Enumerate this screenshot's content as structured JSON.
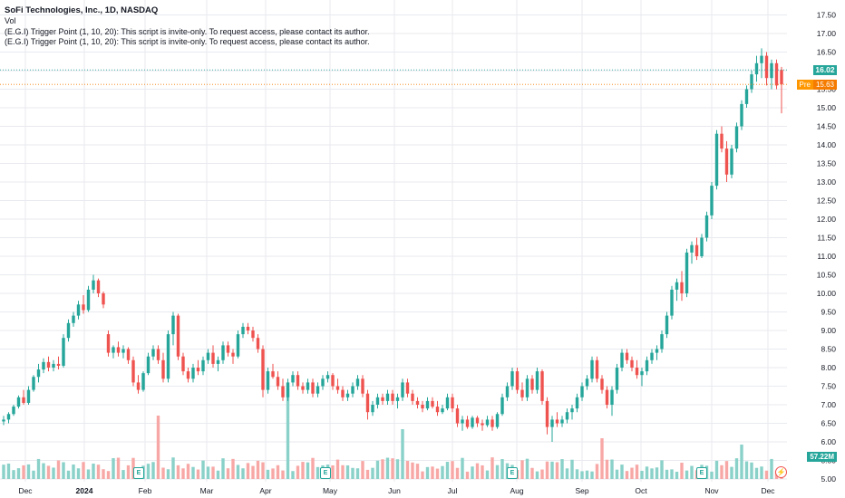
{
  "header": {
    "title": "SoFi Technologies, Inc., 1D, NASDAQ",
    "line2": "Vol",
    "line3": "(E.G.I) Trigger Point  (1, 10, 20): This script is invite-only. To request access, please contact its author.",
    "line4": "(E.G.I) Trigger Point  (1, 10, 20): This script is invite-only. To request access, please contact its author."
  },
  "tags": {
    "last_price": "16.02",
    "pre_label": "Pre",
    "pre_price": "15.63",
    "volume": "57.22M",
    "earnings_icon": "E",
    "dividend_icon": "⚡"
  },
  "colors": {
    "up": "#26a69a",
    "down": "#ef5350",
    "up_vol": "#8ad1c9",
    "down_vol": "#f7a8a6",
    "pre": "#f57c00",
    "grid": "#e8eaef"
  },
  "chart_data": {
    "type": "candlestick",
    "title": "SoFi Technologies, Inc., 1D, NASDAQ",
    "y_ticks": [
      "17.50",
      "17.00",
      "16.50",
      "16.00",
      "15.50",
      "15.00",
      "14.50",
      "14.00",
      "13.50",
      "13.00",
      "12.50",
      "12.00",
      "11.50",
      "11.00",
      "10.50",
      "10.00",
      "9.50",
      "9.00",
      "8.50",
      "8.00",
      "7.50",
      "7.00",
      "6.50",
      "6.00",
      "5.50",
      "5.00"
    ],
    "ylim": [
      5.0,
      17.5
    ],
    "x_labels": [
      "Dec",
      "2024",
      "Feb",
      "Mar",
      "Apr",
      "May",
      "Jun",
      "Jul",
      "Aug",
      "Sep",
      "Oct",
      "Nov",
      "Dec"
    ],
    "last_price": 16.02,
    "pre_market_price": 15.63,
    "last_volume": "57.22M",
    "series": [
      {
        "name": "Dec-23",
        "values": [
          [
            6.55,
            6.7,
            6.45,
            6.6
          ],
          [
            6.6,
            6.8,
            6.5,
            6.75
          ],
          [
            6.75,
            7.0,
            6.7,
            6.95
          ],
          [
            6.95,
            7.25,
            6.9,
            7.2
          ],
          [
            7.2,
            7.4,
            7.0,
            7.05
          ],
          [
            7.05,
            7.5,
            7.0,
            7.4
          ],
          [
            7.4,
            7.8,
            7.35,
            7.75
          ],
          [
            7.75,
            8.1,
            7.6,
            7.95
          ],
          [
            7.95,
            8.25,
            7.85,
            8.15
          ],
          [
            8.15,
            8.3,
            7.9,
            8.0
          ],
          [
            8.0,
            8.2,
            7.9,
            8.1
          ],
          [
            8.1,
            8.3,
            7.95,
            8.05
          ],
          [
            8.05,
            8.9,
            8.0,
            8.8
          ],
          [
            8.8,
            9.3,
            8.7,
            9.2
          ],
          [
            9.2,
            9.5,
            9.1,
            9.4
          ],
          [
            9.4,
            9.8,
            9.3,
            9.7
          ],
          [
            9.7,
            9.95,
            9.45,
            9.55
          ],
          [
            9.55,
            10.2,
            9.5,
            10.1
          ],
          [
            10.1,
            10.5,
            10.0,
            10.35
          ],
          [
            10.35,
            10.4,
            9.9,
            10.0
          ],
          [
            10.0,
            10.05,
            9.6,
            9.7
          ]
        ]
      },
      {
        "name": "Jan-24",
        "values": [
          [
            8.9,
            9.0,
            8.3,
            8.4
          ],
          [
            8.4,
            8.6,
            8.25,
            8.55
          ],
          [
            8.55,
            8.7,
            8.3,
            8.4
          ],
          [
            8.4,
            8.6,
            8.25,
            8.5
          ],
          [
            8.5,
            8.55,
            8.1,
            8.2
          ],
          [
            8.2,
            8.3,
            7.5,
            7.6
          ],
          [
            7.6,
            7.8,
            7.3,
            7.4
          ],
          [
            7.4,
            7.9,
            7.35,
            7.85
          ],
          [
            7.85,
            8.4,
            7.8,
            8.3
          ],
          [
            8.3,
            8.6,
            8.2,
            8.5
          ],
          [
            8.5,
            8.6,
            8.1,
            8.2
          ],
          [
            8.2,
            8.4,
            7.6,
            7.7
          ],
          [
            7.7,
            9.0,
            7.6,
            8.9
          ],
          [
            8.9,
            9.5,
            8.6,
            9.4
          ],
          [
            9.4,
            9.45,
            8.2,
            8.3
          ],
          [
            8.3,
            8.4,
            7.8,
            7.9
          ],
          [
            7.9,
            8.0,
            7.6,
            7.7
          ],
          [
            7.7,
            8.1,
            7.6,
            8.0
          ],
          [
            8.0,
            8.2,
            7.8,
            7.9
          ],
          [
            7.9,
            8.3,
            7.8,
            8.2
          ]
        ]
      },
      {
        "name": "Feb-24",
        "values": [
          [
            8.2,
            8.5,
            8.1,
            8.4
          ],
          [
            8.4,
            8.6,
            8.0,
            8.1
          ],
          [
            8.1,
            8.3,
            7.9,
            8.2
          ],
          [
            8.2,
            8.7,
            8.1,
            8.6
          ],
          [
            8.6,
            8.7,
            8.3,
            8.4
          ],
          [
            8.4,
            8.5,
            8.1,
            8.3
          ],
          [
            8.3,
            9.0,
            8.25,
            8.9
          ],
          [
            8.9,
            9.2,
            8.8,
            9.1
          ],
          [
            9.1,
            9.2,
            8.9,
            9.0
          ],
          [
            9.0,
            9.1,
            8.7,
            8.8
          ],
          [
            8.8,
            8.9,
            8.4,
            8.5
          ],
          [
            8.5,
            8.6,
            7.2,
            7.4
          ],
          [
            7.4,
            8.0,
            7.3,
            7.9
          ],
          [
            7.9,
            8.1,
            7.7,
            7.75
          ],
          [
            7.75,
            7.9,
            7.4,
            7.5
          ],
          [
            7.5,
            7.7,
            7.1,
            7.2
          ],
          [
            7.2,
            7.7,
            7.1,
            7.6
          ],
          [
            7.6,
            7.9,
            7.5,
            7.8
          ],
          [
            7.8,
            7.9,
            7.4,
            7.5
          ],
          [
            7.5,
            7.6,
            7.3,
            7.4
          ]
        ]
      },
      {
        "name": "Apr-24",
        "values": [
          [
            7.4,
            7.7,
            7.3,
            7.6
          ],
          [
            7.6,
            7.7,
            7.2,
            7.3
          ],
          [
            7.3,
            7.6,
            7.2,
            7.5
          ],
          [
            7.5,
            7.8,
            7.4,
            7.7
          ],
          [
            7.7,
            7.9,
            7.6,
            7.8
          ],
          [
            7.8,
            7.85,
            7.4,
            7.5
          ],
          [
            7.5,
            7.7,
            7.3,
            7.4
          ],
          [
            7.4,
            7.5,
            7.1,
            7.2
          ],
          [
            7.2,
            7.4,
            7.1,
            7.3
          ],
          [
            7.3,
            7.6,
            7.2,
            7.5
          ],
          [
            7.5,
            7.8,
            7.4,
            7.7
          ],
          [
            7.7,
            7.8,
            7.2,
            7.3
          ],
          [
            7.3,
            7.4,
            6.6,
            6.8
          ],
          [
            6.8,
            7.1,
            6.7,
            7.0
          ],
          [
            7.0,
            7.3,
            6.9,
            7.2
          ],
          [
            7.2,
            7.3,
            7.0,
            7.1
          ],
          [
            7.1,
            7.4,
            7.0,
            7.3
          ],
          [
            7.3,
            7.4,
            7.0,
            7.1
          ],
          [
            7.1,
            7.3,
            6.9,
            7.2
          ],
          [
            7.2,
            7.7,
            7.1,
            7.6
          ]
        ]
      },
      {
        "name": "Jun-24",
        "values": [
          [
            7.6,
            7.7,
            7.2,
            7.3
          ],
          [
            7.3,
            7.4,
            7.0,
            7.1
          ],
          [
            7.1,
            7.2,
            6.9,
            7.0
          ],
          [
            7.0,
            7.1,
            6.8,
            6.9
          ],
          [
            6.9,
            7.2,
            6.85,
            7.1
          ],
          [
            7.1,
            7.2,
            6.9,
            6.95
          ],
          [
            6.95,
            7.1,
            6.7,
            6.8
          ],
          [
            6.8,
            7.0,
            6.75,
            6.9
          ],
          [
            6.9,
            7.3,
            6.85,
            7.2
          ],
          [
            7.2,
            7.3,
            6.8,
            6.9
          ],
          [
            6.9,
            7.0,
            6.4,
            6.5
          ],
          [
            6.5,
            6.7,
            6.3,
            6.6
          ],
          [
            6.6,
            6.7,
            6.35,
            6.4
          ],
          [
            6.4,
            6.7,
            6.35,
            6.65
          ],
          [
            6.65,
            6.7,
            6.4,
            6.5
          ],
          [
            6.5,
            6.6,
            6.3,
            6.45
          ],
          [
            6.45,
            6.7,
            6.4,
            6.6
          ],
          [
            6.6,
            6.7,
            6.3,
            6.4
          ],
          [
            6.4,
            6.8,
            6.35,
            6.75
          ],
          [
            6.75,
            7.3,
            6.7,
            7.2
          ]
        ]
      },
      {
        "name": "Jul-24",
        "values": [
          [
            7.2,
            7.6,
            7.1,
            7.5
          ],
          [
            7.5,
            8.0,
            7.4,
            7.9
          ],
          [
            7.9,
            8.0,
            7.3,
            7.4
          ],
          [
            7.4,
            7.6,
            7.1,
            7.2
          ],
          [
            7.2,
            7.8,
            7.1,
            7.7
          ],
          [
            7.7,
            7.8,
            7.3,
            7.4
          ],
          [
            7.4,
            8.0,
            7.3,
            7.9
          ],
          [
            7.9,
            7.95,
            7.0,
            7.1
          ],
          [
            7.1,
            7.2,
            6.2,
            6.4
          ],
          [
            6.4,
            6.7,
            6.0,
            6.6
          ],
          [
            6.6,
            6.8,
            6.4,
            6.5
          ],
          [
            6.5,
            6.7,
            6.4,
            6.6
          ],
          [
            6.6,
            6.9,
            6.5,
            6.8
          ],
          [
            6.8,
            7.0,
            6.6,
            6.9
          ],
          [
            6.9,
            7.3,
            6.8,
            7.2
          ],
          [
            7.2,
            7.6,
            7.1,
            7.5
          ],
          [
            7.5,
            7.8,
            7.4,
            7.7
          ],
          [
            7.7,
            8.3,
            7.6,
            8.2
          ],
          [
            8.2,
            8.3,
            7.6,
            7.7
          ],
          [
            7.7,
            7.8,
            7.3,
            7.4
          ]
        ]
      },
      {
        "name": "Sep-24",
        "values": [
          [
            7.4,
            7.5,
            6.9,
            7.0
          ],
          [
            7.0,
            7.5,
            6.7,
            7.4
          ],
          [
            7.4,
            8.1,
            7.3,
            8.0
          ],
          [
            8.0,
            8.5,
            7.9,
            8.4
          ],
          [
            8.4,
            8.5,
            8.1,
            8.2
          ],
          [
            8.2,
            8.3,
            7.9,
            8.0
          ],
          [
            8.0,
            8.2,
            7.7,
            7.8
          ],
          [
            7.8,
            8.0,
            7.5,
            7.9
          ],
          [
            7.9,
            8.3,
            7.8,
            8.2
          ],
          [
            8.2,
            8.5,
            8.1,
            8.4
          ],
          [
            8.4,
            8.6,
            8.2,
            8.5
          ],
          [
            8.5,
            9.0,
            8.4,
            8.9
          ],
          [
            8.9,
            9.5,
            8.8,
            9.4
          ],
          [
            9.4,
            10.2,
            9.3,
            10.1
          ],
          [
            10.1,
            10.4,
            9.8,
            10.3
          ],
          [
            10.3,
            10.6,
            9.8,
            10.0
          ],
          [
            10.0,
            11.2,
            9.9,
            11.1
          ],
          [
            11.1,
            11.4,
            10.8,
            11.3
          ],
          [
            11.3,
            11.5,
            10.9,
            11.0
          ],
          [
            11.0,
            11.6,
            10.95,
            11.5
          ]
        ]
      },
      {
        "name": "Nov-24",
        "values": [
          [
            11.5,
            12.2,
            11.4,
            12.1
          ],
          [
            12.1,
            13.0,
            12.0,
            12.9
          ],
          [
            12.9,
            14.4,
            12.8,
            14.3
          ],
          [
            14.3,
            14.5,
            13.8,
            13.9
          ],
          [
            13.9,
            14.1,
            13.0,
            13.2
          ],
          [
            13.2,
            14.0,
            13.1,
            13.9
          ],
          [
            13.9,
            14.6,
            13.8,
            14.5
          ],
          [
            14.5,
            15.2,
            14.4,
            15.1
          ],
          [
            15.1,
            15.6,
            15.0,
            15.5
          ],
          [
            15.5,
            16.0,
            15.4,
            15.9
          ],
          [
            15.9,
            16.4,
            15.7,
            16.2
          ],
          [
            16.2,
            16.6,
            15.8,
            16.4
          ],
          [
            16.4,
            16.5,
            15.6,
            15.8
          ],
          [
            15.8,
            16.3,
            15.5,
            16.2
          ],
          [
            16.2,
            16.3,
            15.5,
            15.6
          ],
          [
            16.02,
            16.1,
            14.85,
            15.63
          ]
        ]
      }
    ]
  }
}
